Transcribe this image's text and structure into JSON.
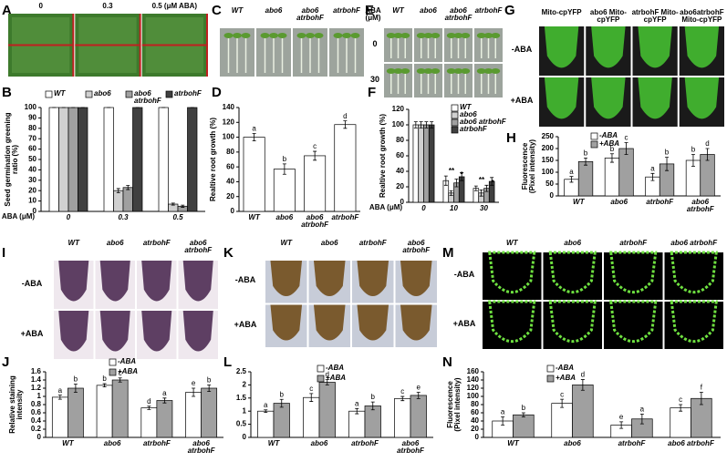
{
  "panels": [
    "A",
    "B",
    "C",
    "D",
    "E",
    "F",
    "G",
    "H",
    "I",
    "J",
    "K",
    "L",
    "M",
    "N"
  ],
  "photo_a": {
    "columns": [
      "0",
      "0.3",
      "0.5 (μM ABA)"
    ]
  },
  "photo_c": {
    "columns": [
      "WT",
      "abo6",
      "abo6 atrbohF",
      "atrbohF"
    ]
  },
  "photo_e": {
    "unit": "ABA (μM)",
    "columns": [
      "WT",
      "abo6",
      "abo6 atrbohF",
      "atrbohF"
    ],
    "rows": [
      "0",
      "30"
    ]
  },
  "photo_g": {
    "columns": [
      "Mito-cpYFP",
      "abo6 Mito-cpYFP",
      "atrbohF Mito-cpYFP",
      "abo6atrbohF Mito-cpYFP"
    ],
    "rows": [
      "-ABA",
      "+ABA"
    ]
  },
  "photo_i": {
    "columns": [
      "WT",
      "abo6",
      "atrbohF",
      "abo6 atrbohF"
    ],
    "rows": [
      "-ABA",
      "+ABA"
    ]
  },
  "photo_k": {
    "columns": [
      "WT",
      "abo6",
      "atrbohF",
      "abo6 atrbohF"
    ],
    "rows": [
      "-ABA",
      "+ABA"
    ]
  },
  "photo_m": {
    "columns": [
      "WT",
      "abo6",
      "atrbohF",
      "abo6 atrbohF"
    ],
    "rows": [
      "-ABA",
      "+ABA"
    ]
  },
  "chart_data": [
    {
      "type": "bar",
      "y_label": "Seed germination greening ratio (%)",
      "x_label": "ABA (μM)",
      "categories": [
        "0",
        "0.3",
        "0.5"
      ],
      "ylim": [
        0,
        100
      ],
      "yticks": [
        0,
        10,
        20,
        30,
        40,
        50,
        60,
        70,
        80,
        90,
        100
      ],
      "series": [
        {
          "name": "WT",
          "color": "#ffffff",
          "values": [
            100,
            100,
            100
          ],
          "errors": [
            0,
            0,
            0
          ]
        },
        {
          "name": "abo6",
          "color": "#d0d0d0",
          "values": [
            100,
            20,
            7
          ],
          "errors": [
            0,
            2,
            1
          ]
        },
        {
          "name": "abo6 atrbohF",
          "color": "#a0a0a0",
          "values": [
            100,
            23,
            5
          ],
          "errors": [
            0,
            2,
            1
          ]
        },
        {
          "name": "atrbohF",
          "color": "#404040",
          "values": [
            100,
            100,
            100
          ],
          "errors": [
            0,
            0,
            0
          ]
        }
      ]
    },
    {
      "type": "bar",
      "y_label": "Realtive root growth (%)",
      "categories": [
        "WT",
        "abo6",
        "abo6 atrbohF",
        "atrbohF"
      ],
      "ylim": [
        0,
        140
      ],
      "yticks": [
        0,
        20,
        40,
        60,
        80,
        100,
        120,
        140
      ],
      "values": [
        100,
        57,
        75,
        117
      ],
      "errors": [
        5,
        7,
        6,
        5
      ],
      "letters": [
        "a",
        "b",
        "c",
        "d"
      ],
      "color": "#ffffff"
    },
    {
      "type": "bar",
      "y_label": "Realtive root growth (%)",
      "x_label": "ABA (μM)",
      "categories": [
        "0",
        "10",
        "30"
      ],
      "ylim": [
        0,
        120
      ],
      "yticks": [
        0,
        20,
        40,
        60,
        80,
        100,
        120
      ],
      "annotations": [
        "**",
        "*",
        "**",
        "*"
      ],
      "series": [
        {
          "name": "WT",
          "color": "#ffffff",
          "values": [
            100,
            28,
            18
          ],
          "errors": [
            4,
            6,
            3
          ]
        },
        {
          "name": "abo6",
          "color": "#d0d0d0",
          "values": [
            100,
            12,
            12
          ],
          "errors": [
            4,
            3,
            4
          ]
        },
        {
          "name": "abo6 atrbohF",
          "color": "#a0a0a0",
          "values": [
            100,
            25,
            18
          ],
          "errors": [
            4,
            5,
            4
          ]
        },
        {
          "name": "atrbohF",
          "color": "#404040",
          "values": [
            100,
            33,
            27
          ],
          "errors": [
            4,
            5,
            5
          ]
        }
      ]
    },
    {
      "type": "bar",
      "y_label": "Fluorescence (Pixel intensity)",
      "categories": [
        "WT",
        "abo6",
        "atrbohF",
        "abo6 atrbohF"
      ],
      "ylim": [
        0,
        250
      ],
      "yticks": [
        0,
        50,
        100,
        150,
        200,
        250
      ],
      "series": [
        {
          "name": "-ABA",
          "color": "#ffffff",
          "values": [
            70,
            160,
            80,
            150
          ],
          "errors": [
            12,
            18,
            15,
            25
          ],
          "letters": [
            "a",
            "b",
            "a",
            "b"
          ]
        },
        {
          "name": "+ABA",
          "color": "#a0a0a0",
          "values": [
            145,
            200,
            135,
            175
          ],
          "errors": [
            15,
            25,
            28,
            25
          ],
          "letters": [
            "b",
            "c",
            "b",
            "d"
          ]
        }
      ]
    },
    {
      "type": "bar",
      "y_label": "Relative staining intensity",
      "categories": [
        "WT",
        "abo6",
        "atrbohF",
        "abo6 atrbohF"
      ],
      "ylim": [
        0,
        1.6
      ],
      "yticks": [
        0,
        0.2,
        0.4,
        0.6,
        0.8,
        1,
        1.2,
        1.4,
        1.6
      ],
      "series": [
        {
          "name": "-ABA",
          "color": "#ffffff",
          "values": [
            0.98,
            1.27,
            0.72,
            1.1
          ],
          "errors": [
            0.05,
            0.04,
            0.04,
            0.1
          ],
          "letters": [
            "a",
            "b",
            "d",
            "e"
          ]
        },
        {
          "name": "+ABA",
          "color": "#a0a0a0",
          "values": [
            1.2,
            1.4,
            0.9,
            1.2
          ],
          "errors": [
            0.1,
            0.05,
            0.06,
            0.08
          ],
          "letters": [
            "b",
            "c",
            "a",
            "b"
          ]
        }
      ]
    },
    {
      "type": "bar",
      "categories": [
        "WT",
        "abo6",
        "atrbohF",
        "abo6 atrbohF"
      ],
      "ylim": [
        0,
        2.5
      ],
      "yticks": [
        0,
        0.5,
        1,
        1.5,
        2,
        2.5
      ],
      "series": [
        {
          "name": "-ABA",
          "color": "#ffffff",
          "values": [
            1,
            1.52,
            1,
            1.48
          ],
          "errors": [
            0.05,
            0.15,
            0.1,
            0.08
          ],
          "letters": [
            "a",
            "c",
            "a",
            "c"
          ]
        },
        {
          "name": "+ABA",
          "color": "#a0a0a0",
          "values": [
            1.3,
            2.1,
            1.2,
            1.6
          ],
          "errors": [
            0.15,
            0.1,
            0.15,
            0.12
          ],
          "letters": [
            "b",
            "d",
            "b",
            "e"
          ]
        }
      ]
    },
    {
      "type": "bar",
      "y_label": "Fluorescence (Pixel intensity)",
      "categories": [
        "WT",
        "abo6",
        "atrbohF",
        "abo6 atrbohF"
      ],
      "ylim": [
        0,
        160
      ],
      "yticks": [
        0,
        20,
        40,
        60,
        80,
        100,
        120,
        140,
        160
      ],
      "series": [
        {
          "name": "-ABA",
          "color": "#ffffff",
          "values": [
            40,
            83,
            30,
            72
          ],
          "errors": [
            10,
            10,
            8,
            8
          ],
          "letters": [
            "a",
            "c",
            "e",
            "c"
          ]
        },
        {
          "name": "+ABA",
          "color": "#a0a0a0",
          "values": [
            55,
            128,
            45,
            95
          ],
          "errors": [
            5,
            13,
            12,
            15
          ],
          "letters": [
            "b",
            "d",
            "a",
            "f"
          ]
        }
      ]
    }
  ]
}
